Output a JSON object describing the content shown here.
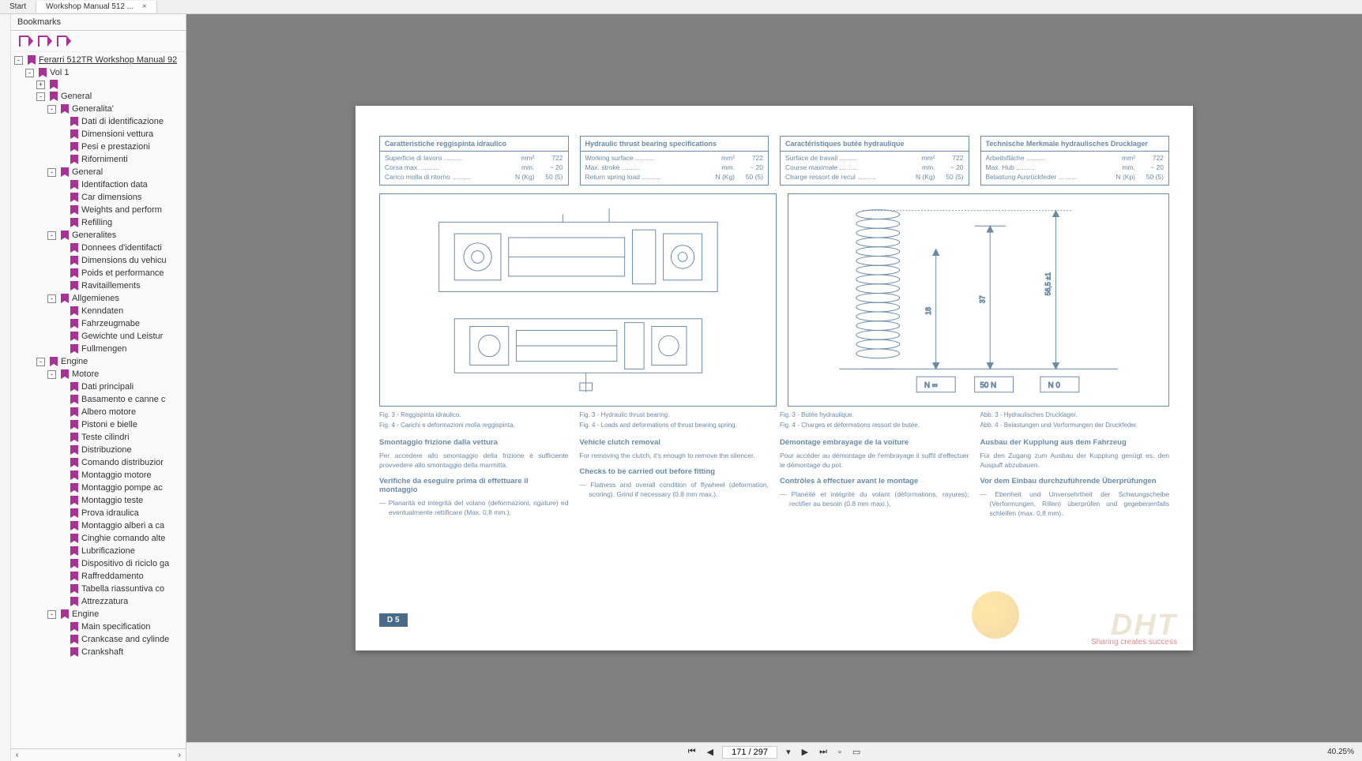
{
  "tabs": {
    "start": "Start",
    "doc": "Workshop Manual 512 ...",
    "close": "×"
  },
  "sidebar": {
    "title": "Bookmarks"
  },
  "tree": [
    {
      "d": 0,
      "e": "-",
      "l": "Ferarri 512TR  Workshop Manual 92",
      "u": true
    },
    {
      "d": 1,
      "e": "-",
      "l": "Vol 1"
    },
    {
      "d": 2,
      "e": "+",
      "l": ""
    },
    {
      "d": 2,
      "e": "-",
      "l": "General"
    },
    {
      "d": 3,
      "e": "-",
      "l": "Generalita'"
    },
    {
      "d": 4,
      "e": "",
      "l": "Dati di identificazione"
    },
    {
      "d": 4,
      "e": "",
      "l": "Dimensioni vettura"
    },
    {
      "d": 4,
      "e": "",
      "l": "Pesi e prestazioni"
    },
    {
      "d": 4,
      "e": "",
      "l": "Rifornimenti"
    },
    {
      "d": 3,
      "e": "-",
      "l": "General"
    },
    {
      "d": 4,
      "e": "",
      "l": "Identifaction data"
    },
    {
      "d": 4,
      "e": "",
      "l": "Car dimensions"
    },
    {
      "d": 4,
      "e": "",
      "l": "Weights and perform"
    },
    {
      "d": 4,
      "e": "",
      "l": "Refilling"
    },
    {
      "d": 3,
      "e": "-",
      "l": "Generalites"
    },
    {
      "d": 4,
      "e": "",
      "l": "Donnees d'identifacti"
    },
    {
      "d": 4,
      "e": "",
      "l": "Dimensions du vehicu"
    },
    {
      "d": 4,
      "e": "",
      "l": "Poids et performance"
    },
    {
      "d": 4,
      "e": "",
      "l": "Ravitaillements"
    },
    {
      "d": 3,
      "e": "-",
      "l": "Allgemienes"
    },
    {
      "d": 4,
      "e": "",
      "l": "Kenndaten"
    },
    {
      "d": 4,
      "e": "",
      "l": "Fahrzeugmabe"
    },
    {
      "d": 4,
      "e": "",
      "l": "Gewichte und Leistur"
    },
    {
      "d": 4,
      "e": "",
      "l": "Fullmengen"
    },
    {
      "d": 2,
      "e": "-",
      "l": "Engine"
    },
    {
      "d": 3,
      "e": "-",
      "l": "Motore"
    },
    {
      "d": 4,
      "e": "",
      "l": "Dati principali"
    },
    {
      "d": 4,
      "e": "",
      "l": "Basamento e canne c"
    },
    {
      "d": 4,
      "e": "",
      "l": "Albero motore"
    },
    {
      "d": 4,
      "e": "",
      "l": "Pistoni e bielle"
    },
    {
      "d": 4,
      "e": "",
      "l": "Teste cilindri"
    },
    {
      "d": 4,
      "e": "",
      "l": "Distribuzione"
    },
    {
      "d": 4,
      "e": "",
      "l": "Comando distribuzior"
    },
    {
      "d": 4,
      "e": "",
      "l": "Montaggio motore"
    },
    {
      "d": 4,
      "e": "",
      "l": "Montaggio pompe ac"
    },
    {
      "d": 4,
      "e": "",
      "l": "Montaggio teste"
    },
    {
      "d": 4,
      "e": "",
      "l": "Prova idraulica"
    },
    {
      "d": 4,
      "e": "",
      "l": "Montaggio alberi a ca"
    },
    {
      "d": 4,
      "e": "",
      "l": "Cinghie comando alte"
    },
    {
      "d": 4,
      "e": "",
      "l": "Lubrificazione"
    },
    {
      "d": 4,
      "e": "",
      "l": "Dispositivo di riciclo ga"
    },
    {
      "d": 4,
      "e": "",
      "l": "Raffreddamento"
    },
    {
      "d": 4,
      "e": "",
      "l": "Tabella riassuntiva co"
    },
    {
      "d": 4,
      "e": "",
      "l": "Attrezzatura"
    },
    {
      "d": 3,
      "e": "-",
      "l": "Engine"
    },
    {
      "d": 4,
      "e": "",
      "l": "Main specification"
    },
    {
      "d": 4,
      "e": "",
      "l": "Crankcase and cylinde"
    },
    {
      "d": 4,
      "e": "",
      "l": "Crankshaft"
    }
  ],
  "specs": [
    {
      "title": "Caratteristiche reggispinta idraulico",
      "rows": [
        {
          "l": "Superficie di lavoro",
          "u": "mm²",
          "v": "722"
        },
        {
          "l": "Corsa max.",
          "u": "mm.",
          "v": "~ 20"
        },
        {
          "l": "Carico molla di ritorno",
          "u": "N (Kg)",
          "v": "50 (5)"
        }
      ]
    },
    {
      "title": "Hydraulic thrust bearing specifications",
      "rows": [
        {
          "l": "Working surface",
          "u": "mm²",
          "v": "722"
        },
        {
          "l": "Max. stroke",
          "u": "mm.",
          "v": "~ 20"
        },
        {
          "l": "Return spring load",
          "u": "N (Kg)",
          "v": "50 (5)"
        }
      ]
    },
    {
      "title": "Caractéristiques butée hydraulique",
      "rows": [
        {
          "l": "Surface de travail",
          "u": "mm²",
          "v": "722"
        },
        {
          "l": "Course maximale",
          "u": "mm.",
          "v": "~ 20"
        },
        {
          "l": "Charge ressort de recul",
          "u": "N (Kg)",
          "v": "50 (5)"
        }
      ]
    },
    {
      "title": "Technische Merkmale hydraulisches Drucklager",
      "rows": [
        {
          "l": "Arbeitsfläche",
          "u": "mm²",
          "v": "722"
        },
        {
          "l": "Max. Hub",
          "u": "mm.",
          "v": "~ 20"
        },
        {
          "l": "Belastung Ausrückfeder",
          "u": "N (Kp)",
          "v": "50 (5)"
        }
      ]
    }
  ],
  "captions": [
    [
      "Fig. 3 - Reggispinta idraulico.",
      "Fig. 4 - Carichi e deformazioni molla reggispinta."
    ],
    [
      "Fig. 3 - Hydraulic thrust bearing.",
      "Fig. 4 - Loads and deformations of thrust bearing spring."
    ],
    [
      "Fig. 3 - Butée hydraulique.",
      "Fig. 4 - Charges et déformations ressort de butée."
    ],
    [
      "Abb. 3 - Hydraulisches Drucklager.",
      "Abb. 4 - Belastungen und Verformungen der Druckfeder."
    ]
  ],
  "sections": [
    {
      "t1": "Smontaggio frizione dalla vettura",
      "p1": "Per accedere allo smontaggio della frizione é sufficiente provvedere allo smontaggio della marmitta.",
      "t2": "Verifiche da eseguire prima di effettuare il montaggio",
      "b": "— Planarità ed integrità del volano (deformazioni, rigature) ed eventualmente rettificare (Max. 0,8 mm.)."
    },
    {
      "t1": "Vehicle clutch removal",
      "p1": "For removing the clutch, it's enough to remove the silencer.",
      "t2": "Checks to be carried out before fitting",
      "b": "— Flatness and overall condition of flywheel (deformation, scoring). Grind if necessary (0.8 mm max.)."
    },
    {
      "t1": "Démontage embrayage de la voiture",
      "p1": "Pour accéder au démontage de l'embrayage il suffit d'effectuer le démontage du pot.",
      "t2": "Contrôles à effectuer avant le montage",
      "b": "— Planéité et intégrité du volant (déformations, rayures); rectifier au besoin (0.8 mm maxi.)."
    },
    {
      "t1": "Ausbau der Kupplung aus dem Fahrzeug",
      "p1": "Für den Zugang zum Ausbau der Kupplung genügt es, den Auspuff abzubauen.",
      "t2": "Vor dem Einbau durchzuführende Überprüfungen",
      "b": "— Ebenheit und Unversehrtheit der Schwungscheibe (Verformungen, Rillen) überprüfen und gegebenenfalls schleifen (max. 0,8 mm)."
    }
  ],
  "spring": {
    "labels": [
      "N ∞",
      "50 N",
      "N 0"
    ],
    "dims": [
      "18",
      "37",
      "56,5 ±1"
    ]
  },
  "pageNum": "D 5",
  "watermark": {
    "main": "DHT",
    "sub": "Sharing creates success"
  },
  "nav": {
    "page": "171 / 297",
    "zoom": "40.25%"
  },
  "colors": {
    "ink": "#6a8aa8",
    "accent": "#a83296",
    "pagebadge": "#4a6a8a"
  }
}
